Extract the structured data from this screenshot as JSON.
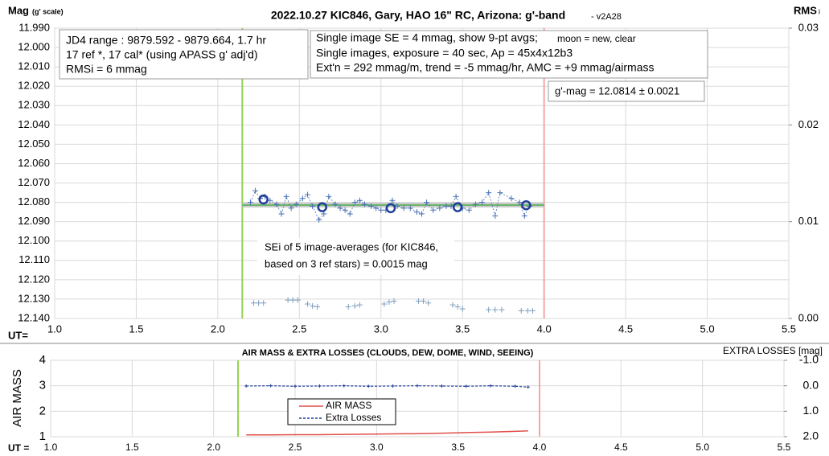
{
  "chart_data": [
    {
      "type": "scatter",
      "title": "2022.10.27 KIC846, Gary, HAO 16\" RC, Arizona: g'-band",
      "subtitle": "- v2A28",
      "y_label": "Mag",
      "y_label_note": "(g' scale)",
      "y2_label": "RMS",
      "y2_label_sub": "i",
      "x_label": "UT=",
      "xlim": [
        1.0,
        5.5
      ],
      "xticks": [
        {
          "value": 1,
          "label": "1.0"
        },
        {
          "value": 1.5,
          "label": "1.5"
        },
        {
          "value": 2,
          "label": "2.0"
        },
        {
          "value": 2.5,
          "label": "2.5"
        },
        {
          "value": 3,
          "label": "3.0"
        },
        {
          "value": 3.5,
          "label": "3.5"
        },
        {
          "value": 4,
          "label": "4.0"
        },
        {
          "value": 4.5,
          "label": "4.5"
        },
        {
          "value": 5,
          "label": "5.0"
        },
        {
          "value": 5.5,
          "label": "5.5"
        }
      ],
      "ylim": [
        11.99,
        12.14
      ],
      "y_inverted": true,
      "yticks": [
        {
          "value": 11.99,
          "label": "11.990"
        },
        {
          "value": 12.0,
          "label": "12.000"
        },
        {
          "value": 12.01,
          "label": "12.010"
        },
        {
          "value": 12.02,
          "label": "12.020"
        },
        {
          "value": 12.03,
          "label": "12.030"
        },
        {
          "value": 12.04,
          "label": "12.040"
        },
        {
          "value": 12.05,
          "label": "12.050"
        },
        {
          "value": 12.06,
          "label": "12.060"
        },
        {
          "value": 12.07,
          "label": "12.070"
        },
        {
          "value": 12.08,
          "label": "12.080"
        },
        {
          "value": 12.09,
          "label": "12.090"
        },
        {
          "value": 12.1,
          "label": "12.100"
        },
        {
          "value": 12.11,
          "label": "12.110"
        },
        {
          "value": 12.12,
          "label": "12.120"
        },
        {
          "value": 12.13,
          "label": "12.130"
        },
        {
          "value": 12.14,
          "label": "12.140"
        }
      ],
      "y2lim": [
        0,
        0.03
      ],
      "y2ticks": [
        {
          "value": 0,
          "label": "0.00"
        },
        {
          "value": 0.01,
          "label": "0.01"
        },
        {
          "value": 0.02,
          "label": "0.02"
        },
        {
          "value": 0.03,
          "label": "0.03"
        }
      ],
      "grid": true,
      "series": [
        {
          "color": "#4a72b8",
          "marker": "plus",
          "dashed": true,
          "x": [
            2.2,
            2.23,
            2.26,
            2.29,
            2.32,
            2.36,
            2.39,
            2.42,
            2.45,
            2.48,
            2.52,
            2.55,
            2.58,
            2.62,
            2.65,
            2.68,
            2.72,
            2.75,
            2.78,
            2.81,
            2.84,
            2.87,
            2.9,
            2.94,
            2.97,
            3.0,
            3.03,
            3.07,
            3.1,
            3.14,
            3.18,
            3.22,
            3.25,
            3.28,
            3.32,
            3.36,
            3.4,
            3.43,
            3.46,
            3.5,
            3.54,
            3.58,
            3.62,
            3.66,
            3.7,
            3.73,
            3.8,
            3.85,
            3.88,
            3.91
          ],
          "values": [
            12.08,
            12.074,
            12.078,
            12.077,
            12.079,
            12.081,
            12.086,
            12.077,
            12.083,
            12.081,
            12.078,
            12.076,
            12.082,
            12.089,
            12.086,
            12.077,
            12.081,
            12.083,
            12.084,
            12.086,
            12.08,
            12.079,
            12.081,
            12.082,
            12.083,
            12.084,
            12.084,
            12.079,
            12.082,
            12.083,
            12.083,
            12.085,
            12.086,
            12.08,
            12.084,
            12.083,
            12.082,
            12.082,
            12.077,
            12.083,
            12.084,
            12.081,
            12.08,
            12.075,
            12.087,
            12.075,
            12.078,
            12.08,
            12.087,
            12.082
          ]
        },
        {
          "color": "#1f3f99",
          "marker": "circle",
          "x": [
            2.28,
            2.64,
            3.06,
            3.47,
            3.89
          ],
          "values": [
            12.0785,
            12.0825,
            12.083,
            12.0825,
            12.0815
          ]
        },
        {
          "color": "#7f9fbf",
          "marker": "plus",
          "axis": "y2",
          "x": [
            2.22,
            2.25,
            2.28,
            2.43,
            2.46,
            2.49,
            2.55,
            2.58,
            2.61,
            2.8,
            2.84,
            2.87,
            3.02,
            3.05,
            3.08,
            3.23,
            3.26,
            3.29,
            3.44,
            3.47,
            3.5,
            3.66,
            3.7,
            3.74,
            3.86,
            3.9,
            3.93
          ],
          "values": [
            0.0016,
            0.0016,
            0.0016,
            0.0019,
            0.0019,
            0.0019,
            0.0015,
            0.0013,
            0.0012,
            0.0012,
            0.0013,
            0.0014,
            0.0015,
            0.0017,
            0.0018,
            0.0018,
            0.0018,
            0.0016,
            0.0014,
            0.0012,
            0.001,
            0.0009,
            0.0009,
            0.0009,
            0.0008,
            0.0008,
            0.0008
          ]
        }
      ],
      "vlines": [
        {
          "value": 2.15,
          "color": "#92d050"
        },
        {
          "value": 4.0,
          "color": "#f4a6a6"
        }
      ],
      "reference_line": {
        "value": 12.0814,
        "label": "g'-mag = 12.0814 ± 0.0021"
      },
      "annotations": {
        "info_left": [
          "JD4 range : 9879.592 - 9879.664,  1.7 hr",
          "17 ref *, 17 cal* (using APASS g' adj'd)",
          "RMSi = 6 mmag"
        ],
        "info_right": [
          "Single image SE = 4 mmag, show  9-pt avgs; ",
          "moon = new, clear",
          "Single images, exposure = 40 sec, Ap = 45x4x12b3",
          "Ext'n = 292 mmag/m, trend = -5 mmag/hr, AMC = +9 mmag/airmass"
        ],
        "sei": [
          "SEi of 5 image-averages (for KIC846,",
          "based on 3 ref stars) = 0.0015 mag"
        ]
      }
    },
    {
      "type": "line",
      "title": "AIR MASS & EXTRA LOSSES (CLOUDS, DEW, DOME, WIND, SEEING)",
      "y_label": "AIR MASS",
      "y2_label": "EXTRA LOSSES [mag]",
      "x_label": "UT =",
      "xlim": [
        1.0,
        5.5
      ],
      "xticks": [
        {
          "value": 1,
          "label": "1.0"
        },
        {
          "value": 1.5,
          "label": "1.5"
        },
        {
          "value": 2,
          "label": "2.0"
        },
        {
          "value": 2.5,
          "label": "2.5"
        },
        {
          "value": 3,
          "label": "3.0"
        },
        {
          "value": 3.5,
          "label": "3.5"
        },
        {
          "value": 4,
          "label": "4.0"
        },
        {
          "value": 4.5,
          "label": "4.5"
        },
        {
          "value": 5,
          "label": "5.0"
        },
        {
          "value": 5.5,
          "label": "5.5"
        }
      ],
      "ylim": [
        1,
        4
      ],
      "yticks": [
        1,
        2,
        3,
        4
      ],
      "y2lim": [
        -1.0,
        2.0
      ],
      "y2_inverted": true,
      "y2ticks": [
        {
          "value": -1,
          "label": "-1.0"
        },
        {
          "value": 0,
          "label": "0.0"
        },
        {
          "value": 1,
          "label": "1.0"
        },
        {
          "value": 2,
          "label": "2.0"
        }
      ],
      "grid": true,
      "x": [
        2.2,
        2.35,
        2.5,
        2.65,
        2.8,
        2.95,
        3.1,
        3.25,
        3.4,
        3.55,
        3.7,
        3.85,
        3.93
      ],
      "series": [
        {
          "name": "AIR MASS",
          "color": "#e0504a",
          "values": [
            1.07,
            1.07,
            1.08,
            1.08,
            1.09,
            1.1,
            1.11,
            1.12,
            1.14,
            1.16,
            1.18,
            1.21,
            1.23
          ]
        },
        {
          "name": "Extra Losses",
          "color": "#1f3f99",
          "axis": "y2",
          "dashed": true,
          "values": [
            0.01,
            0.0,
            0.02,
            0.01,
            0.0,
            0.02,
            0.01,
            0.0,
            0.01,
            0.02,
            0.0,
            0.02,
            0.05
          ]
        }
      ],
      "vlines": [
        {
          "value": 2.15,
          "color": "#92d050"
        },
        {
          "value": 4.0,
          "color": "#f4a6a6"
        }
      ]
    }
  ]
}
